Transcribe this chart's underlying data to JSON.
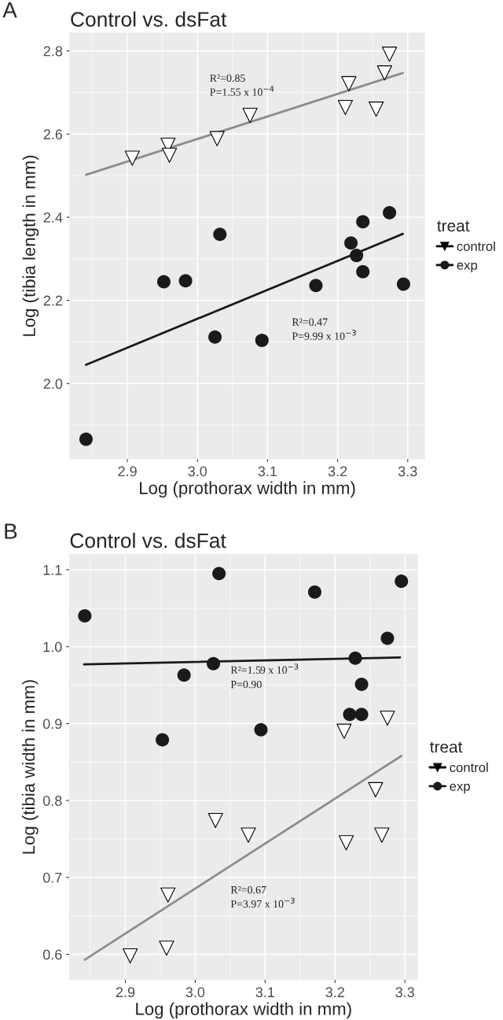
{
  "chart_data": [
    {
      "type": "scatter",
      "title": "Control vs. dsFat",
      "xlabel": "Log (prothorax width in mm)",
      "ylabel": "Log (tibia length in mm)",
      "legend_title": "treat",
      "legend": "right",
      "grid": true,
      "xlim": [
        2.818,
        3.324
      ],
      "xticks": [
        2.9,
        {
          "value": 3.0,
          "label": "3.0"
        },
        3.1,
        3.2,
        3.3
      ],
      "ylim": [
        1.819,
        2.843
      ],
      "yticks": [
        {
          "value": 2.0,
          "label": "2.0"
        },
        2.2,
        2.4,
        2.6,
        2.8
      ],
      "series": [
        {
          "name": "control",
          "marker": "triangle",
          "color": "#000000",
          "x": [
            2.907,
            2.958,
            2.96,
            3.028,
            3.075,
            3.216,
            3.211,
            3.255,
            3.267,
            3.274
          ],
          "values": [
            2.542,
            2.573,
            2.549,
            2.589,
            2.645,
            2.721,
            2.664,
            2.66,
            2.747,
            2.792
          ]
        },
        {
          "name": "exp",
          "marker": "circle",
          "color": "#1a1a1a",
          "x": [
            3.032,
            3.274,
            3.236,
            3.219,
            3.227,
            3.236,
            3.294,
            3.169,
            2.952,
            2.983,
            3.025,
            3.092,
            2.841
          ],
          "values": [
            2.359,
            2.411,
            2.389,
            2.338,
            2.308,
            2.269,
            2.239,
            2.236,
            2.245,
            2.247,
            2.112,
            2.104,
            1.866
          ]
        },
        {
          "type": "line",
          "color": "#8c8c8c",
          "x": [
            2.841,
            3.293
          ],
          "values": [
            2.502,
            2.747
          ]
        },
        {
          "type": "line",
          "color": "#1a1a1a",
          "x": [
            2.841,
            3.293
          ],
          "values": [
            2.045,
            2.36
          ]
        }
      ],
      "annotations": [
        "A",
        "R²=0.85",
        "P=1.55 x 10$^{−4}$",
        "R²=0.47",
        "P=9.99 x 10$^{−3}$"
      ]
    },
    {
      "type": "scatter",
      "title": "Control vs. dsFat",
      "xlabel": "Log (prothorax width in mm)",
      "ylabel": "Log (tibia width in mm)",
      "legend_title": "treat",
      "legend": "right",
      "grid": true,
      "xlim": [
        2.82,
        3.318
      ],
      "xticks": [
        2.9,
        {
          "value": 3.0,
          "label": "3.0"
        },
        3.1,
        3.2,
        3.3
      ],
      "ylim": [
        0.567,
        1.12
      ],
      "yticks": [
        0.6,
        0.7,
        0.8,
        0.9,
        {
          "value": 1.0,
          "label": "1.0"
        },
        1.1
      ],
      "series": [
        {
          "name": "control",
          "marker": "triangle",
          "color": "#000000",
          "x": [
            3.213,
            3.275,
            3.258,
            3.029,
            3.076,
            3.216,
            3.267,
            2.961,
            2.959,
            2.907
          ],
          "values": [
            0.89,
            0.907,
            0.814,
            0.774,
            0.755,
            0.745,
            0.755,
            0.677,
            0.608,
            0.598
          ]
        },
        {
          "name": "exp",
          "marker": "circle",
          "color": "#1a1a1a",
          "x": [
            2.842,
            3.034,
            3.171,
            3.295,
            3.275,
            3.229,
            3.026,
            2.984,
            3.238,
            3.221,
            3.238,
            3.094,
            2.953
          ],
          "values": [
            1.04,
            1.095,
            1.071,
            1.085,
            1.011,
            0.985,
            0.978,
            0.963,
            0.951,
            0.912,
            0.912,
            0.892,
            0.879
          ]
        },
        {
          "type": "line",
          "color": "#1a1a1a",
          "x": [
            2.841,
            3.293
          ],
          "values": [
            0.977,
            0.986
          ]
        },
        {
          "type": "line",
          "color": "#8c8c8c",
          "x": [
            2.842,
            3.295
          ],
          "values": [
            0.593,
            0.858
          ]
        }
      ],
      "annotations": [
        "B",
        "R²=1.59 x 10$^{−3}$",
        "P=0.90",
        "R²=0.67",
        "P=3.97 x 10$^{−3}$"
      ]
    }
  ]
}
